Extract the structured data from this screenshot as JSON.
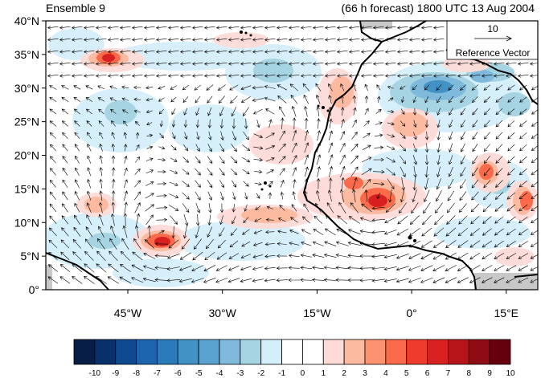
{
  "title": {
    "left": "Ensemble 9",
    "right": "(66 h forecast) 1800 UTC 13 Aug 2004"
  },
  "axes": {
    "lat_labels": [
      "40°N",
      "35°N",
      "30°N",
      "25°N",
      "20°N",
      "15°N",
      "10°N",
      "5°N",
      "0°"
    ],
    "lat_values": [
      40,
      35,
      30,
      25,
      20,
      15,
      10,
      5,
      0
    ],
    "lon_labels": [
      "45°W",
      "30°W",
      "15°W",
      "0°",
      "15°E"
    ],
    "lon_values": [
      -45,
      -30,
      -15,
      0,
      15
    ],
    "lon_range": [
      -58,
      20
    ],
    "lat_range": [
      0,
      40
    ]
  },
  "reference_vector": {
    "value": "10",
    "label": "Reference Vector"
  },
  "colorbar": {
    "labels": [
      "-10",
      "-9",
      "-8",
      "-7",
      "-6",
      "-5",
      "-4",
      "-3",
      "-2",
      "-1",
      "0",
      "1",
      "2",
      "3",
      "4",
      "5",
      "6",
      "7",
      "8",
      "9",
      "10"
    ],
    "colors": [
      "#071e46",
      "#08306b",
      "#0d4a8f",
      "#1c64ad",
      "#2b7bbb",
      "#4292c6",
      "#5aa3d0",
      "#7fbadc",
      "#a6d4e2",
      "#d4effa",
      "#ffffff",
      "#ffffff",
      "#fddbd7",
      "#fcbba1",
      "#fc9272",
      "#fb6a4a",
      "#ef3b2c",
      "#d7201f",
      "#b7141a",
      "#8f0c14",
      "#67000d"
    ]
  },
  "colors": {
    "land_mask": "#c8c8c8",
    "coast": "#000000"
  }
}
